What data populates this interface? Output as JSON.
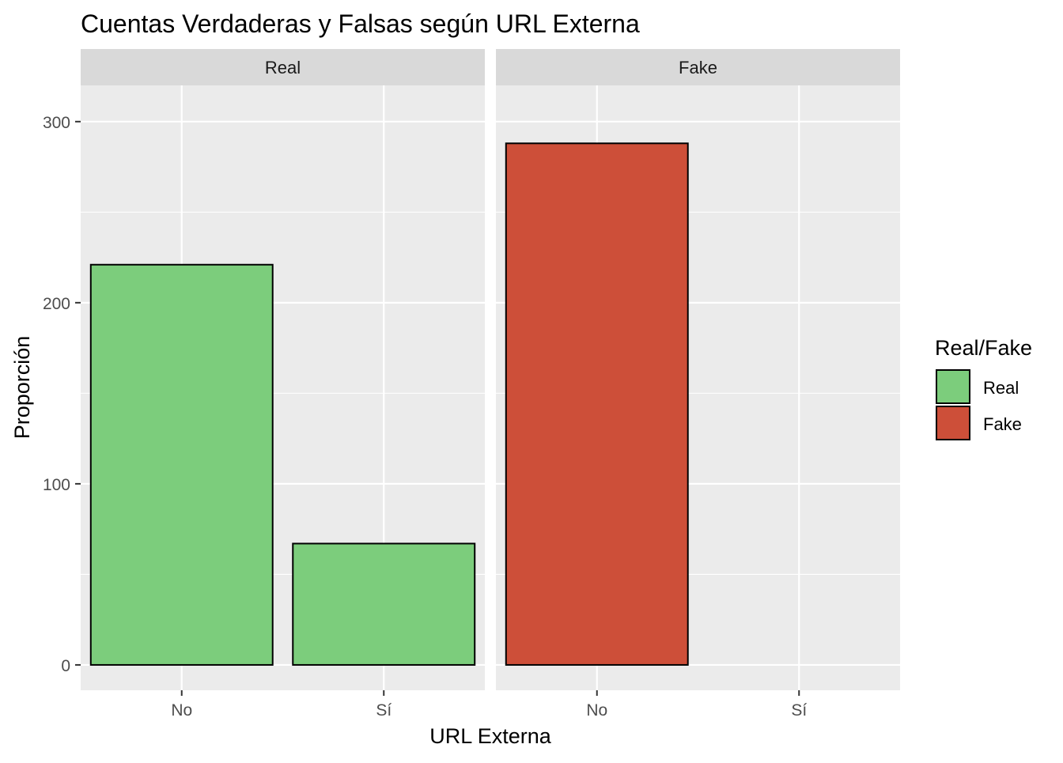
{
  "chart_data": {
    "type": "bar",
    "title": "Cuentas Verdaderas y Falsas según URL Externa",
    "xlabel": "URL Externa",
    "ylabel": "Proporción",
    "categories": [
      "No",
      "Sí"
    ],
    "ylim": [
      -14,
      320
    ],
    "yticks": [
      0,
      100,
      200,
      300
    ],
    "grid": true,
    "legend": {
      "title": "Real/Fake",
      "position": "right",
      "entries": [
        {
          "label": "Real",
          "color": "#7ccd7c"
        },
        {
          "label": "Fake",
          "color": "#cd4f39"
        }
      ]
    },
    "panels": [
      {
        "label": "Real",
        "fill": "#7ccd7c",
        "values": [
          221,
          67
        ]
      },
      {
        "label": "Fake",
        "fill": "#cd4f39",
        "values": [
          288,
          0
        ]
      }
    ]
  }
}
